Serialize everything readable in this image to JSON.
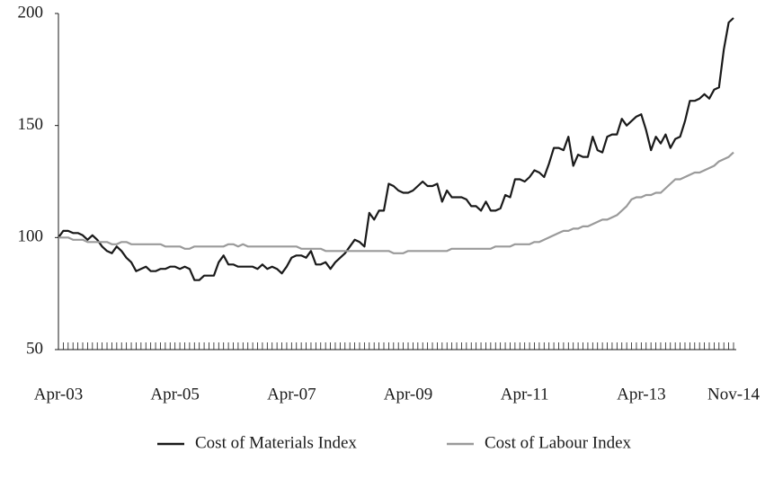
{
  "chart_data": {
    "type": "line",
    "categories": [
      "Apr-03",
      null,
      null,
      null,
      null,
      null,
      null,
      null,
      null,
      null,
      null,
      null,
      null,
      null,
      null,
      null,
      null,
      null,
      null,
      null,
      null,
      null,
      null,
      null,
      "Apr-05",
      null,
      null,
      null,
      null,
      null,
      null,
      null,
      null,
      null,
      null,
      null,
      null,
      null,
      null,
      null,
      null,
      null,
      null,
      null,
      null,
      null,
      null,
      null,
      "Apr-07",
      null,
      null,
      null,
      null,
      null,
      null,
      null,
      null,
      null,
      null,
      null,
      null,
      null,
      null,
      null,
      null,
      null,
      null,
      null,
      null,
      null,
      null,
      null,
      "Apr-09",
      null,
      null,
      null,
      null,
      null,
      null,
      null,
      null,
      null,
      null,
      null,
      null,
      null,
      null,
      null,
      null,
      null,
      null,
      null,
      null,
      null,
      null,
      null,
      "Apr-11",
      null,
      null,
      null,
      null,
      null,
      null,
      null,
      null,
      null,
      null,
      null,
      null,
      null,
      null,
      null,
      null,
      null,
      null,
      null,
      null,
      null,
      null,
      null,
      "Apr-13",
      null,
      null,
      null,
      null,
      null,
      null,
      null,
      null,
      null,
      null,
      null,
      null,
      null,
      null,
      null,
      null,
      null,
      null,
      "Nov-14"
    ],
    "series": [
      {
        "name": "Cost of Materials Index",
        "color": "#1a1a1a",
        "values": [
          100,
          103,
          103,
          102,
          102,
          101,
          99,
          101,
          99,
          96,
          94,
          93,
          96,
          94,
          91,
          89,
          85,
          86,
          87,
          85,
          85,
          86,
          86,
          87,
          87,
          86,
          87,
          86,
          81,
          81,
          83,
          83,
          83,
          89,
          92,
          88,
          88,
          87,
          87,
          87,
          87,
          86,
          88,
          86,
          87,
          86,
          84,
          87,
          91,
          92,
          92,
          91,
          94,
          88,
          88,
          89,
          86,
          89,
          91,
          93,
          96,
          99,
          98,
          96,
          111,
          108,
          112,
          112,
          124,
          123,
          121,
          120,
          120,
          121,
          123,
          125,
          123,
          123,
          124,
          116,
          121,
          118,
          118,
          118,
          117,
          114,
          114,
          112,
          116,
          112,
          112,
          113,
          119,
          118,
          126,
          126,
          125,
          127,
          130,
          129,
          127,
          133,
          140,
          140,
          139,
          145,
          132,
          137,
          136,
          136,
          145,
          139,
          138,
          145,
          146,
          146,
          153,
          150,
          152,
          154,
          155,
          148,
          139,
          145,
          142,
          146,
          140,
          144,
          145,
          152,
          161,
          161,
          162,
          164,
          162,
          166,
          167,
          184,
          196,
          198
        ]
      },
      {
        "name": "Cost of Labour Index",
        "color": "#9a9a9a",
        "values": [
          100,
          100,
          100,
          99,
          99,
          99,
          98,
          98,
          98,
          98,
          98,
          97,
          97,
          98,
          98,
          97,
          97,
          97,
          97,
          97,
          97,
          97,
          96,
          96,
          96,
          96,
          95,
          95,
          96,
          96,
          96,
          96,
          96,
          96,
          96,
          97,
          97,
          96,
          97,
          96,
          96,
          96,
          96,
          96,
          96,
          96,
          96,
          96,
          96,
          96,
          95,
          95,
          95,
          95,
          95,
          94,
          94,
          94,
          94,
          94,
          94,
          94,
          94,
          94,
          94,
          94,
          94,
          94,
          94,
          93,
          93,
          93,
          94,
          94,
          94,
          94,
          94,
          94,
          94,
          94,
          94,
          95,
          95,
          95,
          95,
          95,
          95,
          95,
          95,
          95,
          96,
          96,
          96,
          96,
          97,
          97,
          97,
          97,
          98,
          98,
          99,
          100,
          101,
          102,
          103,
          103,
          104,
          104,
          105,
          105,
          106,
          107,
          108,
          108,
          109,
          110,
          112,
          114,
          117,
          118,
          118,
          119,
          119,
          120,
          120,
          122,
          124,
          126,
          126,
          127,
          128,
          129,
          129,
          130,
          131,
          132,
          134,
          135,
          136,
          138
        ]
      }
    ],
    "ylim": [
      50,
      200
    ],
    "yticks": [
      50,
      100,
      150,
      200
    ],
    "legend": "bottom"
  }
}
